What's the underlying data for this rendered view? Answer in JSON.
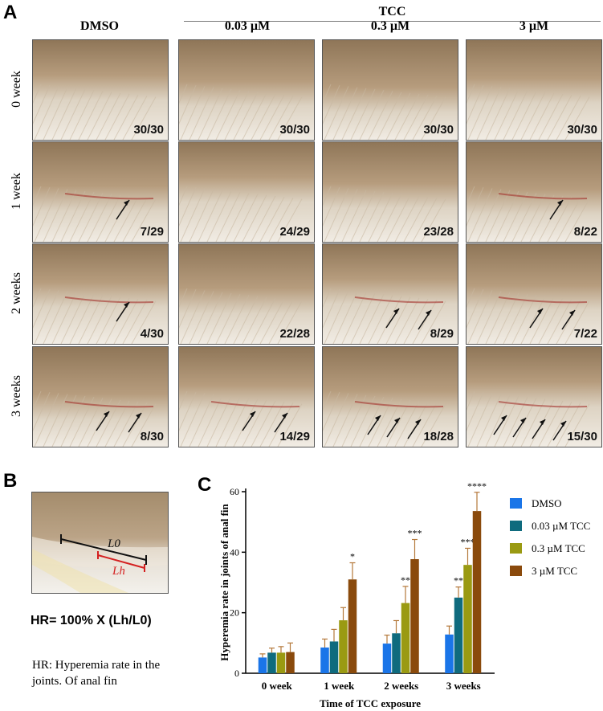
{
  "panel_a": {
    "letter": "A",
    "tcc_label": "TCC",
    "columns": [
      "DMSO",
      "0.03 µM",
      "0.3 µM",
      "3 µM"
    ],
    "rows": [
      "0 week",
      "1 week",
      "2 weeks",
      "3 weeks"
    ],
    "counts": [
      [
        "30/30",
        "30/30",
        "30/30",
        "30/30"
      ],
      [
        "7/29",
        "24/29",
        "23/28",
        "8/22"
      ],
      [
        "4/30",
        "22/28",
        "8/29",
        "7/22"
      ],
      [
        "8/30",
        "14/29",
        "18/28",
        "15/30"
      ]
    ],
    "arrows": [
      [
        0,
        0,
        0,
        0
      ],
      [
        1,
        0,
        0,
        1
      ],
      [
        1,
        0,
        2,
        2
      ],
      [
        2,
        2,
        3,
        4
      ]
    ]
  },
  "panel_b": {
    "letter": "B",
    "l0_label": "L0",
    "lh_label": "Lh",
    "formula": "HR= 100% X (Lh/L0)",
    "note": "HR: Hyperemia rate in the joints. Of anal fin"
  },
  "panel_c": {
    "letter": "C",
    "colors": [
      "#1a75e8",
      "#0f6b7e",
      "#9a9a12",
      "#8a4a0c"
    ],
    "error_color": "#b4783a"
  },
  "chart_data": {
    "type": "bar",
    "categories": [
      "0 week",
      "1 week",
      "2 weeks",
      "3 weeks"
    ],
    "series": [
      {
        "name": "DMSO",
        "values": [
          5.2,
          8.5,
          9.8,
          12.8
        ],
        "errors": [
          1.2,
          2.8,
          2.8,
          2.8
        ]
      },
      {
        "name": "0.03 µM TCC",
        "values": [
          6.8,
          10.5,
          13.2,
          25.0
        ],
        "errors": [
          1.5,
          4.0,
          4.2,
          3.5
        ]
      },
      {
        "name": "0.3 µM TCC",
        "values": [
          6.8,
          17.5,
          23.2,
          35.8
        ],
        "errors": [
          2.0,
          4.2,
          5.5,
          5.5
        ]
      },
      {
        "name": "3 µM TCC",
        "values": [
          7.0,
          31.0,
          37.7,
          53.6
        ],
        "errors": [
          3.0,
          5.5,
          6.5,
          6.2
        ]
      }
    ],
    "significance": [
      [
        "",
        "",
        "",
        ""
      ],
      [
        "",
        "",
        "",
        "**"
      ],
      [
        "",
        "",
        "**",
        "***"
      ],
      [
        "",
        "*",
        "***",
        "****"
      ]
    ],
    "ylabel": "Hyperemia rate in joints of  anal fin",
    "xlabel": "Time of TCC exposure",
    "ylim": [
      0,
      60
    ],
    "yticks": [
      0,
      20,
      40,
      60
    ],
    "legend_position": "right"
  }
}
